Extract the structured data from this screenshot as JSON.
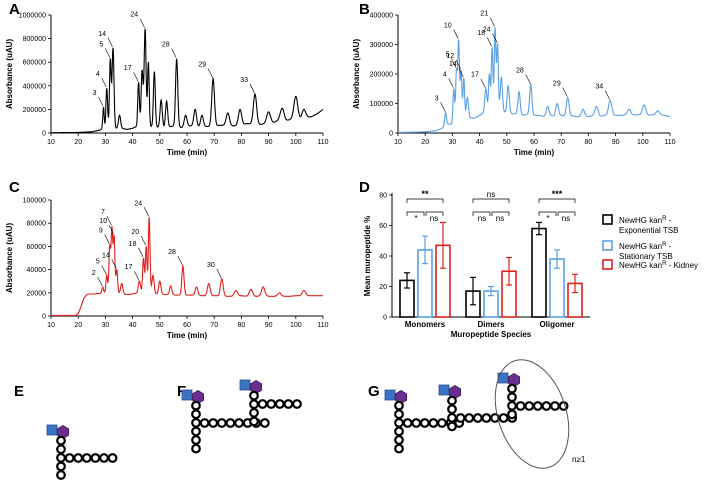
{
  "panels": {
    "A": "A",
    "B": "B",
    "C": "C",
    "D": "D",
    "E": "E",
    "F": "F",
    "G": "G"
  },
  "colors": {
    "A": "#000000",
    "B": "#5aa0e6",
    "C": "#e0201c",
    "stationary": "#5aa0e6",
    "kidney": "#e0201c",
    "exponential": "#000000",
    "glcnac": "#3b73c4",
    "murnac": "#6a2f8e"
  },
  "structure_G_label": "n≥1",
  "chart_data": [
    {
      "panel": "A",
      "type": "line",
      "xlabel": "Time (min)",
      "ylabel": "Absorbance (uAU)",
      "xlim": [
        10,
        110
      ],
      "ylim": [
        0,
        1000000
      ],
      "xticks": [
        "10",
        "20",
        "30",
        "40",
        "50",
        "60",
        "70",
        "80",
        "90",
        "100",
        "110"
      ],
      "yticks": [
        "0",
        "200000",
        "400000",
        "600000",
        "800000",
        "1000000"
      ],
      "baseline": [
        [
          10,
          2000
        ],
        [
          20,
          5000
        ],
        [
          25,
          10000
        ],
        [
          27,
          20000
        ],
        [
          28,
          25000
        ],
        [
          29,
          40000
        ],
        [
          30,
          30000
        ],
        [
          31,
          50000
        ],
        [
          32,
          30000
        ],
        [
          33,
          55000
        ],
        [
          34,
          40000
        ],
        [
          36,
          40000
        ],
        [
          38,
          30000
        ],
        [
          40,
          40000
        ],
        [
          42,
          60000
        ],
        [
          44,
          60000
        ],
        [
          46,
          60000
        ],
        [
          48,
          45000
        ],
        [
          50,
          50000
        ],
        [
          52,
          40000
        ],
        [
          54,
          55000
        ],
        [
          56,
          60000
        ],
        [
          58,
          45000
        ],
        [
          60,
          60000
        ],
        [
          62,
          60000
        ],
        [
          64,
          50000
        ],
        [
          66,
          55000
        ],
        [
          68,
          55000
        ],
        [
          70,
          60000
        ],
        [
          72,
          65000
        ],
        [
          74,
          65000
        ],
        [
          76,
          60000
        ],
        [
          78,
          60000
        ],
        [
          80,
          65000
        ],
        [
          82,
          80000
        ],
        [
          84,
          75000
        ],
        [
          86,
          70000
        ],
        [
          88,
          75000
        ],
        [
          90,
          80000
        ],
        [
          92,
          90000
        ],
        [
          94,
          110000
        ],
        [
          96,
          100000
        ],
        [
          98,
          115000
        ],
        [
          100,
          120000
        ],
        [
          102,
          110000
        ],
        [
          104,
          130000
        ],
        [
          106,
          140000
        ],
        [
          108,
          165000
        ],
        [
          110,
          200000
        ]
      ],
      "peaks": [
        {
          "t": 29.3,
          "v": 220000,
          "w": 0.25,
          "label": "3"
        },
        {
          "t": 30.5,
          "v": 380000,
          "w": 0.3,
          "label": "4"
        },
        {
          "t": 31.8,
          "v": 620000,
          "w": 0.3,
          "label": "5"
        },
        {
          "t": 32.8,
          "v": 720000,
          "w": 0.35,
          "label": "14"
        },
        {
          "t": 35.2,
          "v": 150000,
          "w": 0.4,
          "label": ""
        },
        {
          "t": 42.2,
          "v": 430000,
          "w": 0.3,
          "label": "17"
        },
        {
          "t": 43.5,
          "v": 530000,
          "w": 0.35,
          "label": ""
        },
        {
          "t": 44.6,
          "v": 880000,
          "w": 0.35,
          "label": "24"
        },
        {
          "t": 45.8,
          "v": 600000,
          "w": 0.3,
          "label": ""
        },
        {
          "t": 48.0,
          "v": 520000,
          "w": 0.35,
          "label": ""
        },
        {
          "t": 50.5,
          "v": 280000,
          "w": 0.4,
          "label": ""
        },
        {
          "t": 52.5,
          "v": 270000,
          "w": 0.4,
          "label": ""
        },
        {
          "t": 56.2,
          "v": 630000,
          "w": 0.4,
          "label": "28"
        },
        {
          "t": 59.5,
          "v": 150000,
          "w": 0.5,
          "label": ""
        },
        {
          "t": 63.0,
          "v": 200000,
          "w": 0.5,
          "label": ""
        },
        {
          "t": 65.5,
          "v": 150000,
          "w": 0.5,
          "label": ""
        },
        {
          "t": 69.6,
          "v": 460000,
          "w": 0.5,
          "label": "29"
        },
        {
          "t": 75.0,
          "v": 170000,
          "w": 0.6,
          "label": ""
        },
        {
          "t": 79.5,
          "v": 200000,
          "w": 0.6,
          "label": ""
        },
        {
          "t": 85.0,
          "v": 330000,
          "w": 0.6,
          "label": "33"
        },
        {
          "t": 90.0,
          "v": 180000,
          "w": 0.7,
          "label": ""
        },
        {
          "t": 95.0,
          "v": 210000,
          "w": 0.7,
          "label": ""
        },
        {
          "t": 100.0,
          "v": 310000,
          "w": 0.7,
          "label": ""
        },
        {
          "t": 103.0,
          "v": 200000,
          "w": 0.7,
          "label": ""
        }
      ]
    },
    {
      "panel": "B",
      "type": "line",
      "xlabel": "Time (min)",
      "ylabel": "Absorbance (uAU)",
      "xlim": [
        10,
        110
      ],
      "ylim": [
        0,
        400000
      ],
      "xticks": [
        "10",
        "20",
        "30",
        "40",
        "50",
        "60",
        "70",
        "80",
        "90",
        "100",
        "110"
      ],
      "yticks": [
        "0",
        "100000",
        "200000",
        "300000",
        "400000"
      ],
      "baseline": [
        [
          10,
          2000
        ],
        [
          18,
          3000
        ],
        [
          20,
          4000
        ],
        [
          24,
          8000
        ],
        [
          26,
          15000
        ],
        [
          28,
          30000
        ],
        [
          30,
          30000
        ],
        [
          32,
          40000
        ],
        [
          34,
          40000
        ],
        [
          36,
          50000
        ],
        [
          38,
          50000
        ],
        [
          40,
          60000
        ],
        [
          42,
          70000
        ],
        [
          44,
          80000
        ],
        [
          46,
          75000
        ],
        [
          48,
          70000
        ],
        [
          50,
          70000
        ],
        [
          52,
          65000
        ],
        [
          54,
          65000
        ],
        [
          56,
          60000
        ],
        [
          58,
          65000
        ],
        [
          60,
          60000
        ],
        [
          62,
          60000
        ],
        [
          64,
          55000
        ],
        [
          66,
          60000
        ],
        [
          68,
          55000
        ],
        [
          70,
          60000
        ],
        [
          72,
          55000
        ],
        [
          74,
          58000
        ],
        [
          76,
          55000
        ],
        [
          78,
          55000
        ],
        [
          80,
          55000
        ],
        [
          82,
          60000
        ],
        [
          84,
          55000
        ],
        [
          86,
          60000
        ],
        [
          88,
          60000
        ],
        [
          90,
          60000
        ],
        [
          92,
          60000
        ],
        [
          94,
          62000
        ],
        [
          96,
          60000
        ],
        [
          98,
          62000
        ],
        [
          100,
          62000
        ],
        [
          102,
          60000
        ],
        [
          104,
          62000
        ],
        [
          106,
          62000
        ],
        [
          108,
          60000
        ],
        [
          110,
          55000
        ]
      ],
      "peaks": [
        {
          "t": 27.5,
          "v": 70000,
          "w": 0.3,
          "label": "3"
        },
        {
          "t": 30.5,
          "v": 150000,
          "w": 0.3,
          "label": "4"
        },
        {
          "t": 31.5,
          "v": 210000,
          "w": 0.3,
          "label": "5"
        },
        {
          "t": 32.3,
          "v": 310000,
          "w": 0.3,
          "label": "10"
        },
        {
          "t": 33.2,
          "v": 210000,
          "w": 0.3,
          "label": "12"
        },
        {
          "t": 34.2,
          "v": 185000,
          "w": 0.3,
          "label": "14"
        },
        {
          "t": 35.5,
          "v": 120000,
          "w": 0.4,
          "label": ""
        },
        {
          "t": 42.3,
          "v": 150000,
          "w": 0.4,
          "label": "17"
        },
        {
          "t": 43.6,
          "v": 200000,
          "w": 0.3,
          "label": ""
        },
        {
          "t": 44.6,
          "v": 290000,
          "w": 0.3,
          "label": "18"
        },
        {
          "t": 45.7,
          "v": 355000,
          "w": 0.3,
          "label": "21"
        },
        {
          "t": 46.6,
          "v": 300000,
          "w": 0.3,
          "label": "24"
        },
        {
          "t": 48.0,
          "v": 190000,
          "w": 0.4,
          "label": ""
        },
        {
          "t": 50.5,
          "v": 160000,
          "w": 0.4,
          "label": ""
        },
        {
          "t": 54.5,
          "v": 140000,
          "w": 0.4,
          "label": ""
        },
        {
          "t": 58.8,
          "v": 165000,
          "w": 0.4,
          "label": "28"
        },
        {
          "t": 65.0,
          "v": 90000,
          "w": 0.5,
          "label": ""
        },
        {
          "t": 68.5,
          "v": 100000,
          "w": 0.5,
          "label": ""
        },
        {
          "t": 72.4,
          "v": 120000,
          "w": 0.5,
          "label": "29"
        },
        {
          "t": 78.0,
          "v": 80000,
          "w": 0.6,
          "label": ""
        },
        {
          "t": 83.0,
          "v": 90000,
          "w": 0.6,
          "label": ""
        },
        {
          "t": 88.0,
          "v": 110000,
          "w": 0.6,
          "label": "34"
        },
        {
          "t": 95.0,
          "v": 80000,
          "w": 0.6,
          "label": ""
        },
        {
          "t": 100.5,
          "v": 95000,
          "w": 0.6,
          "label": ""
        },
        {
          "t": 105.5,
          "v": 75000,
          "w": 0.6,
          "label": ""
        }
      ]
    },
    {
      "panel": "C",
      "type": "line",
      "xlabel": "Time (min)",
      "ylabel": "Absorbance (uAU)",
      "xlim": [
        10,
        110
      ],
      "ylim": [
        0,
        100000
      ],
      "xticks": [
        "10",
        "20",
        "30",
        "40",
        "50",
        "60",
        "70",
        "80",
        "90",
        "100",
        "110"
      ],
      "yticks": [
        "0",
        "20000",
        "40000",
        "60000",
        "80000",
        "100000"
      ],
      "baseline": [
        [
          10,
          500
        ],
        [
          19,
          500
        ],
        [
          20,
          2000
        ],
        [
          21,
          8000
        ],
        [
          22,
          15000
        ],
        [
          23,
          18000
        ],
        [
          24,
          19000
        ],
        [
          26,
          19000
        ],
        [
          28,
          19500
        ],
        [
          30,
          20000
        ],
        [
          32,
          21000
        ],
        [
          34,
          20000
        ],
        [
          36,
          19000
        ],
        [
          38,
          18500
        ],
        [
          40,
          19000
        ],
        [
          42,
          20000
        ],
        [
          44,
          21000
        ],
        [
          46,
          20000
        ],
        [
          48,
          19000
        ],
        [
          50,
          19000
        ],
        [
          52,
          18500
        ],
        [
          54,
          18500
        ],
        [
          56,
          18000
        ],
        [
          58,
          18000
        ],
        [
          60,
          18000
        ],
        [
          62,
          18000
        ],
        [
          64,
          17500
        ],
        [
          66,
          17500
        ],
        [
          68,
          17500
        ],
        [
          70,
          17500
        ],
        [
          72,
          17500
        ],
        [
          74,
          17000
        ],
        [
          76,
          17000
        ],
        [
          78,
          17000
        ],
        [
          80,
          17500
        ],
        [
          82,
          17000
        ],
        [
          84,
          17000
        ],
        [
          86,
          17000
        ],
        [
          88,
          17500
        ],
        [
          90,
          17000
        ],
        [
          92,
          17000
        ],
        [
          94,
          17000
        ],
        [
          96,
          17000
        ],
        [
          98,
          17000
        ],
        [
          100,
          17500
        ],
        [
          102,
          17500
        ],
        [
          104,
          17500
        ],
        [
          106,
          17500
        ],
        [
          108,
          17500
        ],
        [
          110,
          17500
        ]
      ],
      "peaks": [
        {
          "t": 29.0,
          "v": 25000,
          "w": 0.3,
          "label": "2"
        },
        {
          "t": 30.5,
          "v": 35000,
          "w": 0.3,
          "label": "5"
        },
        {
          "t": 31.6,
          "v": 60000,
          "w": 0.3,
          "label": "9"
        },
        {
          "t": 32.4,
          "v": 75000,
          "w": 0.3,
          "label": "7"
        },
        {
          "t": 33.2,
          "v": 68000,
          "w": 0.3,
          "label": "10"
        },
        {
          "t": 34.2,
          "v": 40000,
          "w": 0.3,
          "label": "14"
        },
        {
          "t": 36.0,
          "v": 28000,
          "w": 0.4,
          "label": ""
        },
        {
          "t": 42.5,
          "v": 30000,
          "w": 0.4,
          "label": "17"
        },
        {
          "t": 44.0,
          "v": 50000,
          "w": 0.3,
          "label": "18"
        },
        {
          "t": 45.0,
          "v": 60000,
          "w": 0.3,
          "label": "20"
        },
        {
          "t": 46.1,
          "v": 85000,
          "w": 0.3,
          "label": "24"
        },
        {
          "t": 47.5,
          "v": 35000,
          "w": 0.4,
          "label": ""
        },
        {
          "t": 50.0,
          "v": 30000,
          "w": 0.4,
          "label": ""
        },
        {
          "t": 54.0,
          "v": 26000,
          "w": 0.4,
          "label": ""
        },
        {
          "t": 58.5,
          "v": 43000,
          "w": 0.4,
          "label": "28"
        },
        {
          "t": 63.5,
          "v": 25000,
          "w": 0.5,
          "label": ""
        },
        {
          "t": 68.0,
          "v": 28000,
          "w": 0.5,
          "label": ""
        },
        {
          "t": 72.8,
          "v": 32000,
          "w": 0.5,
          "label": "30"
        },
        {
          "t": 78.0,
          "v": 22000,
          "w": 0.6,
          "label": ""
        },
        {
          "t": 83.5,
          "v": 23000,
          "w": 0.6,
          "label": ""
        },
        {
          "t": 88.0,
          "v": 25000,
          "w": 0.6,
          "label": ""
        },
        {
          "t": 94.0,
          "v": 20000,
          "w": 0.6,
          "label": ""
        },
        {
          "t": 103.0,
          "v": 22000,
          "w": 0.6,
          "label": ""
        }
      ]
    },
    {
      "panel": "D",
      "type": "bar",
      "xlabel": "Muropeptide Species",
      "ylabel": "Mean muropeptide %",
      "ylim": [
        0,
        80
      ],
      "yticks": [
        "0",
        "20",
        "40",
        "60",
        "80"
      ],
      "categories": [
        "Monomers",
        "Dimers",
        "Oligomer"
      ],
      "series": [
        {
          "name": "NewHG kanR - Exponential TSB",
          "values": [
            24,
            17,
            58
          ],
          "errors": [
            5,
            9,
            4
          ]
        },
        {
          "name": "NewHG kanR - Stationary TSB",
          "values": [
            44,
            17,
            38
          ],
          "errors": [
            9,
            3,
            6
          ]
        },
        {
          "name": "NewHG kanR - Kidney",
          "values": [
            47,
            30,
            22
          ],
          "errors": [
            15,
            9,
            6
          ]
        }
      ],
      "legend": [
        {
          "line1": "NewHG kan",
          "sup": "R",
          "line1b": " -",
          "line2": "Exponential TSB"
        },
        {
          "line1": "NewHG kan",
          "sup": "R",
          "line1b": " -",
          "line2": "Stationary TSB"
        },
        {
          "line1": "NewHG kan",
          "sup": "R",
          "line1b": " - Kidney",
          "line2": ""
        }
      ],
      "significance": [
        {
          "top": "**",
          "left": "*",
          "right": "ns"
        },
        {
          "top": "ns",
          "left": "ns",
          "right": "ns"
        },
        {
          "top": "***",
          "left": "*",
          "right": "ns"
        }
      ]
    }
  ]
}
